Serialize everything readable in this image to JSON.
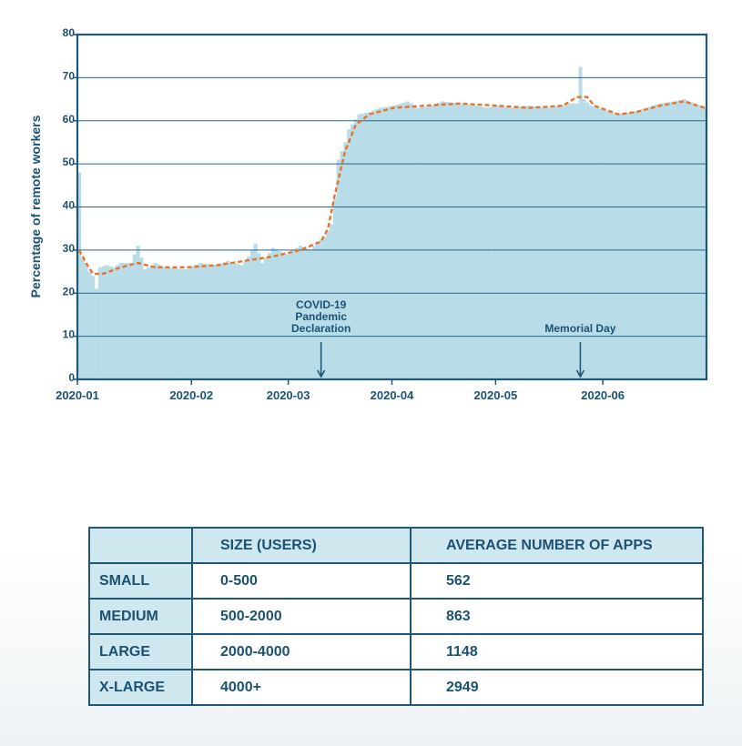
{
  "chart_data": {
    "type": "bar",
    "title": "",
    "ylabel": "Percentage of remote workers",
    "xlabel": "",
    "ylim": [
      0,
      80
    ],
    "yticks": [
      0,
      10,
      20,
      30,
      40,
      50,
      60,
      70,
      80
    ],
    "xlim": [
      "2020-01-01",
      "2020-06-30"
    ],
    "xticks": [
      {
        "label": "2020-01",
        "date": "2020-01-01"
      },
      {
        "label": "2020-02",
        "date": "2020-02-03"
      },
      {
        "label": "2020-03",
        "date": "2020-03-02"
      },
      {
        "label": "2020-04",
        "date": "2020-04-01"
      },
      {
        "label": "2020-05",
        "date": "2020-05-01"
      },
      {
        "label": "2020-06",
        "date": "2020-06-01"
      }
    ],
    "grid": true,
    "colors": {
      "bars": "#b8dde9",
      "trend": "#e8742a",
      "axis": "#1f5775",
      "text": "#1b5273",
      "grid": "#2a6688"
    },
    "series": [
      {
        "kind": "daily-bars",
        "anchors": [
          [
            "2020-01-01",
            48
          ],
          [
            "2020-01-02",
            28
          ],
          [
            "2020-01-03",
            27
          ],
          [
            "2020-01-04",
            25
          ],
          [
            "2020-01-05",
            24
          ],
          [
            "2020-01-06",
            21
          ],
          [
            "2020-01-07",
            26
          ],
          [
            "2020-01-09",
            26.5
          ],
          [
            "2020-01-11",
            26
          ],
          [
            "2020-01-13",
            27
          ],
          [
            "2020-01-16",
            27
          ],
          [
            "2020-01-18",
            31
          ],
          [
            "2020-01-20",
            25.5
          ],
          [
            "2020-01-23",
            27
          ],
          [
            "2020-01-26",
            26
          ],
          [
            "2020-02-01",
            25.5
          ],
          [
            "2020-02-05",
            27
          ],
          [
            "2020-02-10",
            26.5
          ],
          [
            "2020-02-13",
            27.5
          ],
          [
            "2020-02-15",
            27
          ],
          [
            "2020-02-17",
            26.5
          ],
          [
            "2020-02-19",
            28.5
          ],
          [
            "2020-02-21",
            31.5
          ],
          [
            "2020-02-23",
            27
          ],
          [
            "2020-02-26",
            30.5
          ],
          [
            "2020-03-01",
            29
          ],
          [
            "2020-03-05",
            31
          ],
          [
            "2020-03-08",
            30
          ],
          [
            "2020-03-10",
            32
          ],
          [
            "2020-03-12",
            33
          ],
          [
            "2020-03-14",
            36
          ],
          [
            "2020-03-15",
            42
          ],
          [
            "2020-03-16",
            51
          ],
          [
            "2020-03-18",
            55
          ],
          [
            "2020-03-19",
            58
          ],
          [
            "2020-03-22",
            61.5
          ],
          [
            "2020-03-25",
            62
          ],
          [
            "2020-03-28",
            63
          ],
          [
            "2020-04-01",
            63.5
          ],
          [
            "2020-04-05",
            64.5
          ],
          [
            "2020-04-08",
            63
          ],
          [
            "2020-04-12",
            63.5
          ],
          [
            "2020-04-15",
            64.5
          ],
          [
            "2020-04-20",
            64
          ],
          [
            "2020-04-25",
            63.5
          ],
          [
            "2020-04-28",
            63
          ],
          [
            "2020-05-01",
            63.5
          ],
          [
            "2020-05-05",
            63
          ],
          [
            "2020-05-10",
            63.5
          ],
          [
            "2020-05-15",
            63
          ],
          [
            "2020-05-20",
            63.5
          ],
          [
            "2020-05-22",
            64
          ],
          [
            "2020-05-24",
            64
          ],
          [
            "2020-05-25",
            72.5
          ],
          [
            "2020-05-26",
            65
          ],
          [
            "2020-05-28",
            63.5
          ],
          [
            "2020-06-01",
            62.5
          ],
          [
            "2020-06-05",
            61.5
          ],
          [
            "2020-06-09",
            62
          ],
          [
            "2020-06-13",
            63
          ],
          [
            "2020-06-17",
            64
          ],
          [
            "2020-06-21",
            64.5
          ],
          [
            "2020-06-24",
            65
          ],
          [
            "2020-06-27",
            64
          ],
          [
            "2020-06-30",
            63
          ]
        ]
      },
      {
        "kind": "trend-line",
        "anchors": [
          [
            "2020-01-01",
            30
          ],
          [
            "2020-01-03",
            27
          ],
          [
            "2020-01-05",
            24.5
          ],
          [
            "2020-01-08",
            24.5
          ],
          [
            "2020-01-13",
            26
          ],
          [
            "2020-01-18",
            27
          ],
          [
            "2020-01-23",
            26
          ],
          [
            "2020-02-01",
            26
          ],
          [
            "2020-02-10",
            26.5
          ],
          [
            "2020-02-18",
            27.5
          ],
          [
            "2020-02-26",
            28.5
          ],
          [
            "2020-03-05",
            30
          ],
          [
            "2020-03-11",
            32
          ],
          [
            "2020-03-13",
            35
          ],
          [
            "2020-03-15",
            43
          ],
          [
            "2020-03-18",
            53
          ],
          [
            "2020-03-21",
            59
          ],
          [
            "2020-03-25",
            61.5
          ],
          [
            "2020-04-01",
            63
          ],
          [
            "2020-04-10",
            63.5
          ],
          [
            "2020-04-20",
            64
          ],
          [
            "2020-05-01",
            63.5
          ],
          [
            "2020-05-10",
            63
          ],
          [
            "2020-05-20",
            63.5
          ],
          [
            "2020-05-24",
            65.5
          ],
          [
            "2020-05-27",
            65.5
          ],
          [
            "2020-05-29",
            63.5
          ],
          [
            "2020-06-05",
            61.5
          ],
          [
            "2020-06-10",
            62
          ],
          [
            "2020-06-17",
            63.5
          ],
          [
            "2020-06-24",
            64.5
          ],
          [
            "2020-06-30",
            63
          ]
        ]
      }
    ],
    "annotations": [
      {
        "date": "2020-03-11",
        "lines": [
          "COVID-19",
          "Pandemic",
          "Declaration"
        ]
      },
      {
        "date": "2020-05-25",
        "lines": [
          "Memorial Day"
        ]
      }
    ]
  },
  "table": {
    "headers": [
      "",
      "SIZE (USERS)",
      "AVERAGE NUMBER OF APPS"
    ],
    "rows": [
      [
        "SMALL",
        "0-500",
        "562"
      ],
      [
        "MEDIUM",
        "500-2000",
        "863"
      ],
      [
        "LARGE",
        "2000-4000",
        "1148"
      ],
      [
        "X-LARGE",
        "4000+",
        "2949"
      ]
    ]
  }
}
